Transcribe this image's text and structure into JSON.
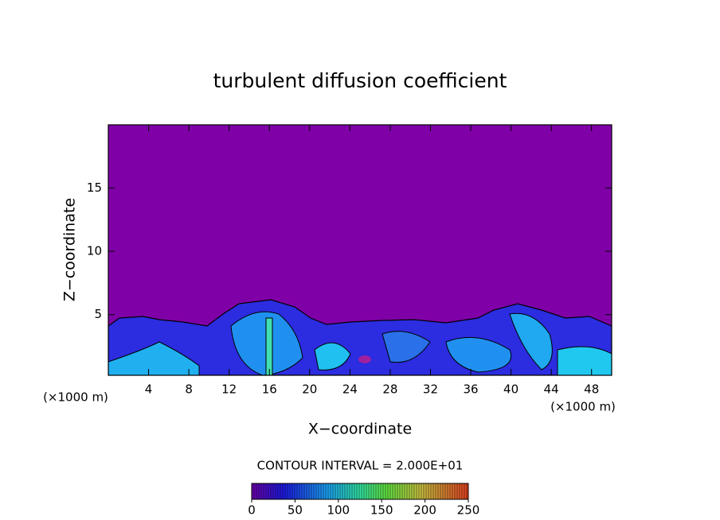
{
  "chart_data": {
    "type": "contour",
    "title": "turbulent diffusion coefficient",
    "x_label": "X−coordinate",
    "y_label": "Z−coordinate",
    "x_unit": "(×1000 m)",
    "xlim": [
      0,
      50
    ],
    "xticks": [
      4,
      8,
      12,
      16,
      20,
      24,
      28,
      32,
      36,
      40,
      44,
      48
    ],
    "ylim": [
      0.2,
      20
    ],
    "yticks": [
      5,
      10,
      15
    ],
    "contour_interval_label": "CONTOUR INTERVAL = 2.000E+01",
    "colorbar": {
      "lim": [
        0,
        250
      ],
      "ticks": [
        0,
        50,
        100,
        150,
        200,
        250
      ]
    }
  }
}
